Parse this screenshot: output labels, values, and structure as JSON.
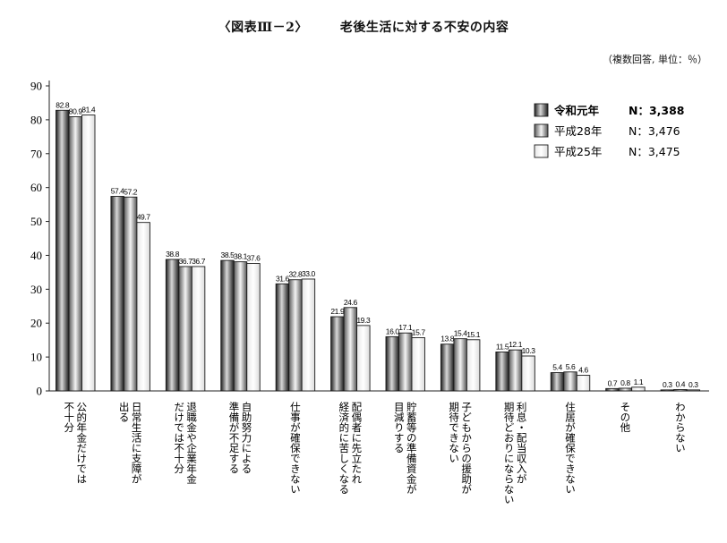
{
  "title_number": "〈図表Ⅲ－2〉",
  "title_text": "老後生活に対する不安の内容",
  "note": "（複数回答, 単位：％）",
  "colors": {
    "axis": "#222222",
    "bar_edge": "#1a1a1a"
  },
  "chart_data": {
    "type": "bar",
    "title": "老後生活に対する不安の内容",
    "ylim": [
      0,
      90
    ],
    "yticks": [
      "0",
      "10",
      "20",
      "30",
      "40",
      "50",
      "60",
      "70",
      "80",
      "90"
    ],
    "legend_position": "top-right",
    "grid": false,
    "categories": [
      [
        "公的年金だけでは",
        "不十分"
      ],
      [
        "日常生活に支障が",
        "出る"
      ],
      [
        "退職金や企業年金",
        "だけでは不十分"
      ],
      [
        "自助努力による",
        "準備が不足する"
      ],
      [
        "仕事が確保できない"
      ],
      [
        "配偶者に先立たれ",
        "経済的に苦しくなる"
      ],
      [
        "貯蓄等の準備資金が",
        "目減りする"
      ],
      [
        "子どもからの援助が",
        "期待できない"
      ],
      [
        "利息・配当収入が",
        "期待どおりにならない"
      ],
      [
        "住居が確保できない"
      ],
      [
        "その他"
      ],
      [
        "わからない"
      ]
    ],
    "series": [
      {
        "name": "令和元年",
        "n": "N：3,388",
        "style": "dark",
        "values": [
          82.8,
          57.4,
          38.8,
          38.5,
          31.6,
          21.9,
          16.0,
          13.8,
          11.5,
          5.4,
          0.7,
          0.3
        ],
        "labels": [
          "82.8",
          "57.4",
          "38.8",
          "38.5",
          "31.6",
          "21.9",
          "16.0",
          "13.8",
          "11.5",
          "5.4",
          "0.7",
          "0.3"
        ]
      },
      {
        "name": "平成28年",
        "n": "N：3,476",
        "style": "medium",
        "values": [
          80.9,
          57.2,
          36.7,
          38.1,
          32.8,
          24.6,
          17.1,
          15.4,
          12.1,
          5.6,
          0.8,
          0.4
        ],
        "labels": [
          "80.9",
          "57.2",
          "36.7",
          "38.1",
          "32.8",
          "24.6",
          "17.1",
          "15.4",
          "12.1",
          "5.6",
          "0.8",
          "0.4"
        ]
      },
      {
        "name": "平成25年",
        "n": "N：3,475",
        "style": "light",
        "values": [
          81.4,
          49.7,
          36.7,
          37.6,
          33.0,
          19.3,
          15.7,
          15.1,
          10.3,
          4.6,
          1.1,
          0.3
        ],
        "labels": [
          "81.4",
          "49.7",
          "36.7",
          "37.6",
          "33.0",
          "19.3",
          "15.7",
          "15.1",
          "10.3",
          "4.6",
          "1.1",
          "0.3"
        ]
      }
    ]
  }
}
